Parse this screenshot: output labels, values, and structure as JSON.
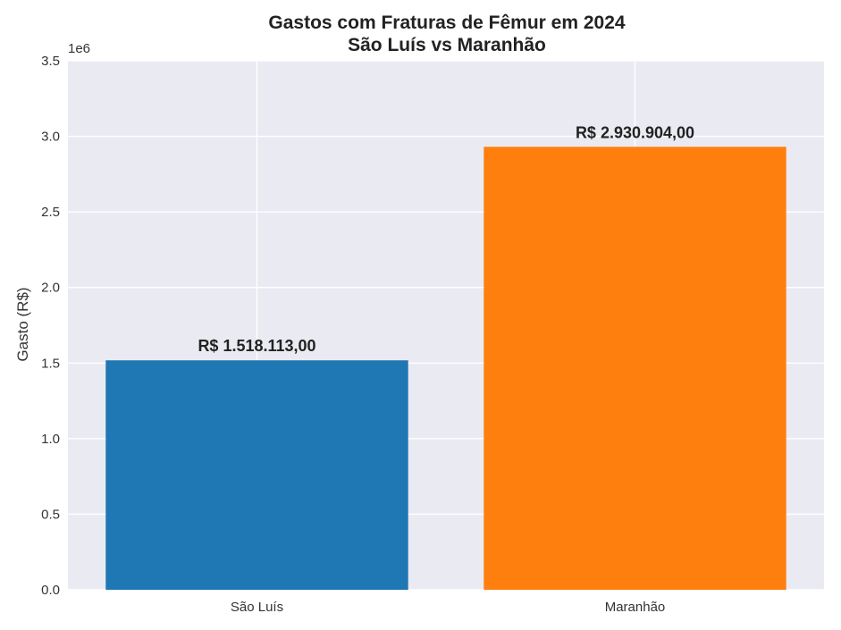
{
  "chart_data": {
    "type": "bar",
    "title_lines": [
      "Gastos com Fraturas de Fêmur em 2024",
      "São Luís vs Maranhão"
    ],
    "xlabel": "",
    "ylabel": "Gasto (R$)",
    "y_offset_label": "1e6",
    "ylim": [
      0,
      3500000
    ],
    "y_ticks": [
      0,
      500000,
      1000000,
      1500000,
      2000000,
      2500000,
      3000000,
      3500000
    ],
    "y_tick_labels": [
      "0.0",
      "0.5",
      "1.0",
      "1.5",
      "2.0",
      "2.5",
      "3.0",
      "3.5"
    ],
    "categories": [
      "São Luís",
      "Maranhão"
    ],
    "values": [
      1518113.0,
      2930904.0
    ],
    "value_labels": [
      "R$ 1.518.113,00",
      "R$ 2.930.904,00"
    ],
    "colors": [
      "#1f77b4",
      "#ff7f0e"
    ],
    "grid": true,
    "background": "#eaeaf2"
  }
}
